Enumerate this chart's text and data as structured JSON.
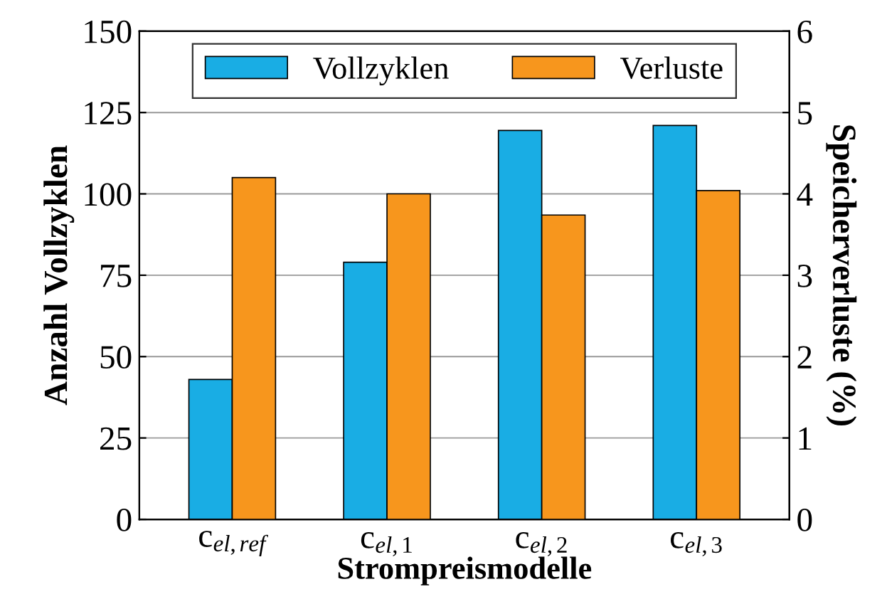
{
  "chart_data": {
    "type": "bar",
    "categories": [
      "c$_{el,ref}$",
      "c$_{el,1}$",
      "c$_{el,2}$",
      "c$_{el,3}$"
    ],
    "series": [
      {
        "name": "Vollzyklen",
        "color": "#19ade4",
        "values": [
          43,
          79,
          119.5,
          121
        ]
      },
      {
        "name": "Verluste",
        "color": "#f7961d",
        "axis": "y2",
        "values": [
          4.2,
          4.0,
          3.74,
          4.04
        ]
      }
    ],
    "xlabel": "Strompreismodelle",
    "ylabel": "Anzahl Vollzyklen",
    "y2label": "Speicherverluste (%)",
    "ylim": [
      0,
      150
    ],
    "yticks": [
      0,
      25,
      50,
      75,
      100,
      125,
      150
    ],
    "y2lim": [
      0,
      6
    ],
    "y2ticks": [
      0,
      1,
      2,
      3,
      4,
      5,
      6
    ],
    "grid": "y",
    "legend": "top"
  }
}
